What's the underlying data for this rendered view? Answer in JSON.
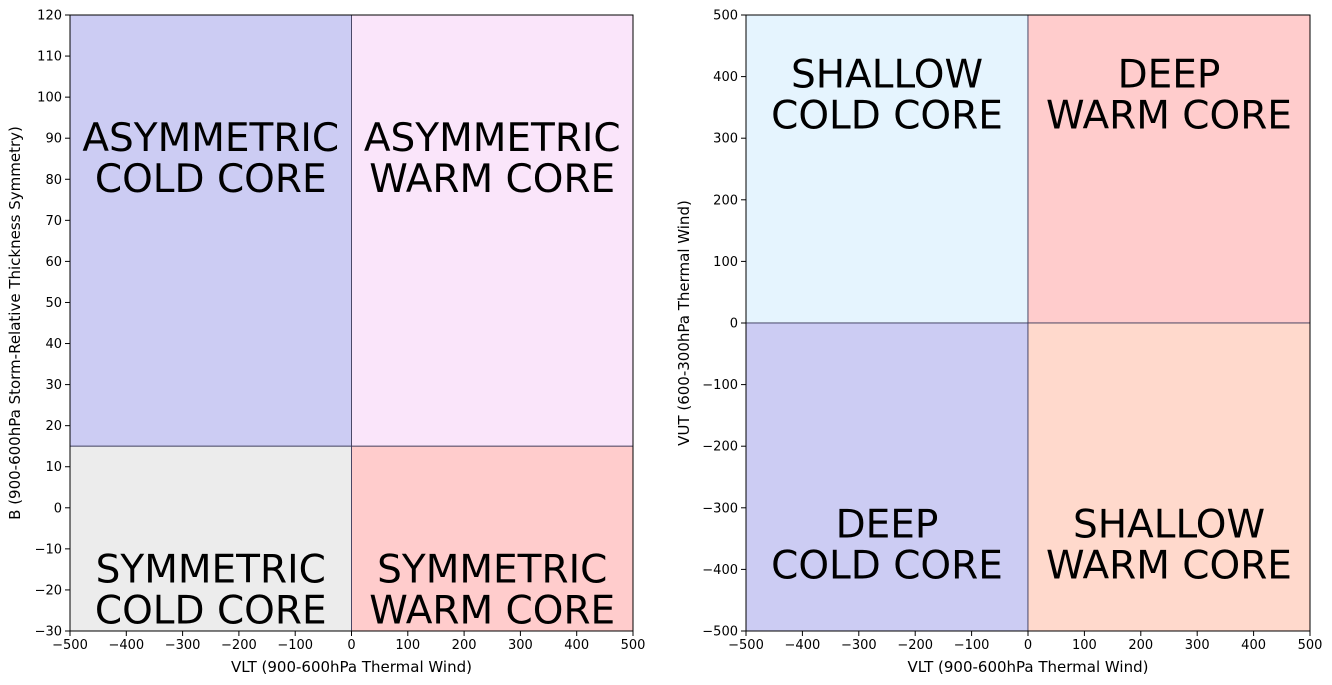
{
  "chart_data": [
    {
      "type": "heatmap",
      "xlabel": "VLT (900-600hPa Thermal Wind)",
      "ylabel": "B (900-600hPa Storm-Relative Thickness Symmetry)",
      "xlim": [
        -500,
        500
      ],
      "ylim": [
        -30,
        120
      ],
      "xticks": [
        -500,
        -400,
        -300,
        -200,
        -100,
        0,
        100,
        200,
        300,
        400,
        500
      ],
      "yticks": [
        -30,
        -20,
        -10,
        0,
        10,
        20,
        30,
        40,
        50,
        60,
        70,
        80,
        90,
        100,
        110,
        120
      ],
      "grid": false,
      "regions": [
        {
          "x": [
            -500,
            0
          ],
          "y": [
            15,
            120
          ],
          "color": "#ccccf3",
          "label_lines": [
            "ASYMMETRIC",
            "COLD CORE"
          ],
          "label_y": 85
        },
        {
          "x": [
            0,
            500
          ],
          "y": [
            15,
            120
          ],
          "color": "#fae5fa",
          "label_lines": [
            "ASYMMETRIC",
            "WARM CORE"
          ],
          "label_y": 85
        },
        {
          "x": [
            -500,
            0
          ],
          "y": [
            -30,
            15
          ],
          "color": "#ececec",
          "label_lines": [
            "SYMMETRIC",
            "COLD CORE"
          ],
          "label_y": -20
        },
        {
          "x": [
            0,
            500
          ],
          "y": [
            -30,
            15
          ],
          "color": "#ffcccc",
          "label_lines": [
            "SYMMETRIC",
            "WARM CORE"
          ],
          "label_y": -20
        }
      ]
    },
    {
      "type": "heatmap",
      "xlabel": "VLT (900-600hPa Thermal Wind)",
      "ylabel": "VUT (600-300hPa Thermal Wind)",
      "xlim": [
        -500,
        500
      ],
      "ylim": [
        -500,
        500
      ],
      "xticks": [
        -500,
        -400,
        -300,
        -200,
        -100,
        0,
        100,
        200,
        300,
        400,
        500
      ],
      "yticks": [
        -500,
        -400,
        -300,
        -200,
        -100,
        0,
        100,
        200,
        300,
        400,
        500
      ],
      "grid": false,
      "regions": [
        {
          "x": [
            -500,
            0
          ],
          "y": [
            0,
            500
          ],
          "color": "#e5f4fe",
          "label_lines": [
            "SHALLOW",
            "COLD CORE"
          ],
          "label_y": 370
        },
        {
          "x": [
            0,
            500
          ],
          "y": [
            0,
            500
          ],
          "color": "#ffcccc",
          "label_lines": [
            "DEEP",
            "WARM CORE"
          ],
          "label_y": 370
        },
        {
          "x": [
            -500,
            0
          ],
          "y": [
            -500,
            0
          ],
          "color": "#ccccf3",
          "label_lines": [
            "DEEP",
            "COLD CORE"
          ],
          "label_y": -360
        },
        {
          "x": [
            0,
            500
          ],
          "y": [
            -500,
            0
          ],
          "color": "#ffd9cc",
          "label_lines": [
            "SHALLOW",
            "WARM CORE"
          ],
          "label_y": -360
        }
      ]
    }
  ]
}
